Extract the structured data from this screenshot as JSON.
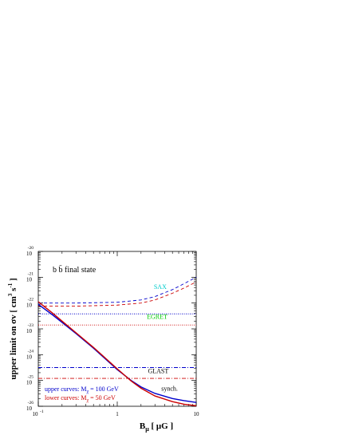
{
  "chart_data": {
    "type": "line",
    "title": "b b̄ final state",
    "xlabel": {
      "base": "B",
      "sub": "μ",
      "unit": " [ μG ]"
    },
    "ylabel": {
      "main": "upper limit on σv [ cm",
      "sup1": "3",
      "mid": " s",
      "sup2": "-1",
      "end": " ]"
    },
    "x_scale": "log",
    "y_scale": "log",
    "xlim": [
      0.1,
      10
    ],
    "ylim": [
      1e-26,
      1e-20
    ],
    "x_ticks": [
      {
        "value": 0.1,
        "base": "10",
        "exp": "-1"
      },
      {
        "value": 1,
        "base": "1",
        "exp": ""
      },
      {
        "value": 10,
        "base": "10",
        "exp": ""
      }
    ],
    "y_ticks": [
      {
        "value": -20,
        "base": "10",
        "exp": "-20"
      },
      {
        "value": -21,
        "base": "10",
        "exp": "-21"
      },
      {
        "value": -22,
        "base": "10",
        "exp": "-22"
      },
      {
        "value": -23,
        "base": "10",
        "exp": "-23"
      },
      {
        "value": -24,
        "base": "10",
        "exp": "-24"
      },
      {
        "value": -25,
        "base": "10",
        "exp": "-25"
      },
      {
        "value": -26,
        "base": "10",
        "exp": "-26"
      }
    ],
    "series": [
      {
        "label": "SAX (upper, 100 GeV)",
        "color": "#0000cc",
        "dash": "4,3",
        "style": "dashed",
        "x": [
          0.1,
          0.3,
          1,
          2,
          3,
          5,
          7,
          10
        ],
        "logy": [
          -22.0,
          -22.0,
          -21.97,
          -21.88,
          -21.75,
          -21.48,
          -21.25,
          -21.0
        ]
      },
      {
        "label": "SAX (lower, 50 GeV)",
        "color": "#cc0000",
        "dash": "4,3",
        "style": "dashed",
        "x": [
          0.1,
          0.3,
          1,
          2,
          3,
          5,
          7,
          10
        ],
        "logy": [
          -22.12,
          -22.12,
          -22.08,
          -22.0,
          -21.88,
          -21.62,
          -21.42,
          -21.18
        ]
      },
      {
        "label": "EGRET (upper, 100 GeV)",
        "color": "#0000cc",
        "dash": "1,1.5",
        "style": "dotted",
        "x": [
          0.1,
          10
        ],
        "logy": [
          -22.42,
          -22.42
        ]
      },
      {
        "label": "EGRET (lower, 50 GeV)",
        "color": "#cc0000",
        "dash": "1,1.5",
        "style": "dotted",
        "x": [
          0.1,
          10
        ],
        "logy": [
          -22.85,
          -22.85
        ]
      },
      {
        "label": "GLAST (upper, 100 GeV)",
        "color": "#0000cc",
        "dash": "5,2,1,2",
        "style": "dashdot",
        "x": [
          0.1,
          10
        ],
        "logy": [
          -24.5,
          -24.5
        ]
      },
      {
        "label": "GLAST (lower, 50 GeV)",
        "color": "#cc0000",
        "dash": "5,2,1,2",
        "style": "dashdot",
        "x": [
          0.1,
          10
        ],
        "logy": [
          -24.92,
          -24.92
        ]
      },
      {
        "label": "synch. (upper, 100 GeV)",
        "color": "#0000cc",
        "dash": "",
        "style": "solid",
        "x": [
          0.1,
          0.15,
          0.2,
          0.3,
          0.5,
          0.7,
          1,
          1.5,
          2,
          3,
          5,
          7,
          10
        ],
        "logy": [
          -22.05,
          -22.45,
          -22.75,
          -23.18,
          -23.75,
          -24.15,
          -24.58,
          -25.0,
          -25.25,
          -25.5,
          -25.7,
          -25.78,
          -25.85
        ]
      },
      {
        "label": "synch. (lower, 50 GeV)",
        "color": "#cc0000",
        "dash": "",
        "style": "solid",
        "x": [
          0.1,
          0.15,
          0.2,
          0.3,
          0.5,
          0.7,
          1,
          1.5,
          2,
          3,
          5,
          7,
          10
        ],
        "logy": [
          -21.95,
          -22.38,
          -22.7,
          -23.15,
          -23.72,
          -24.12,
          -24.55,
          -25.02,
          -25.3,
          -25.6,
          -25.82,
          -25.92,
          -25.98
        ]
      }
    ],
    "annotations": [
      {
        "text": "SAX",
        "color": "#00cccc",
        "x": 3.5,
        "logy": -21.45,
        "anchor": "middle"
      },
      {
        "text": "EGRET",
        "color": "#00cc00",
        "x": 3.2,
        "logy": -22.62,
        "anchor": "middle"
      },
      {
        "text": "GLAST",
        "color": "#000000",
        "x": 3.3,
        "logy": -24.72,
        "anchor": "middle"
      },
      {
        "text": "synch.",
        "color": "#000000",
        "x": 4.6,
        "logy": -25.4,
        "anchor": "middle"
      }
    ],
    "legend_notes": [
      {
        "text_pre": "upper curves: M",
        "sub": "χ",
        "text_post": " = 100 GeV",
        "color": "#0000cc"
      },
      {
        "text_pre": "lower curves: M",
        "sub": "χ",
        "text_post": " = 50 GeV",
        "color": "#cc0000"
      }
    ]
  }
}
